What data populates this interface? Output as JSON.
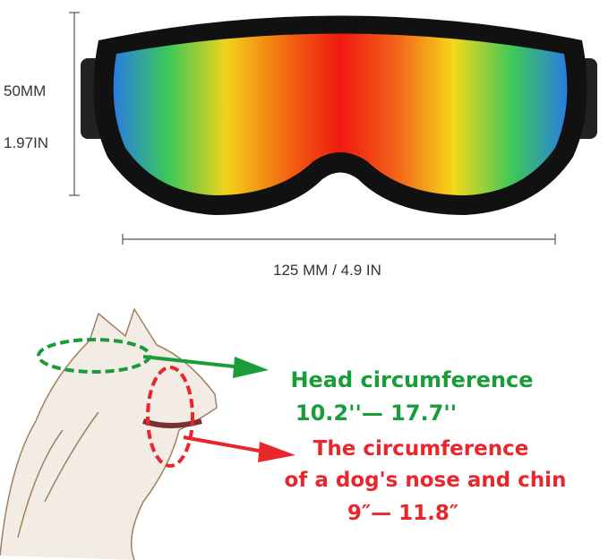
{
  "dimensions": {
    "height_mm": "50MM",
    "height_in": "1.97IN",
    "width_label": "125 MM / 4.9 IN"
  },
  "head": {
    "title": "Head circumference",
    "range": "10.2''— 17.7''"
  },
  "nose": {
    "title": "The circumference",
    "subtitle": "of a dog's nose and chin",
    "range": "9″— 11.8″"
  },
  "colors": {
    "green": "#1a9c3a",
    "red": "#e8262b",
    "frame": "#111111"
  },
  "icons": [
    "goggles-image",
    "dog-sketch-image",
    "arrow-right-icon"
  ]
}
